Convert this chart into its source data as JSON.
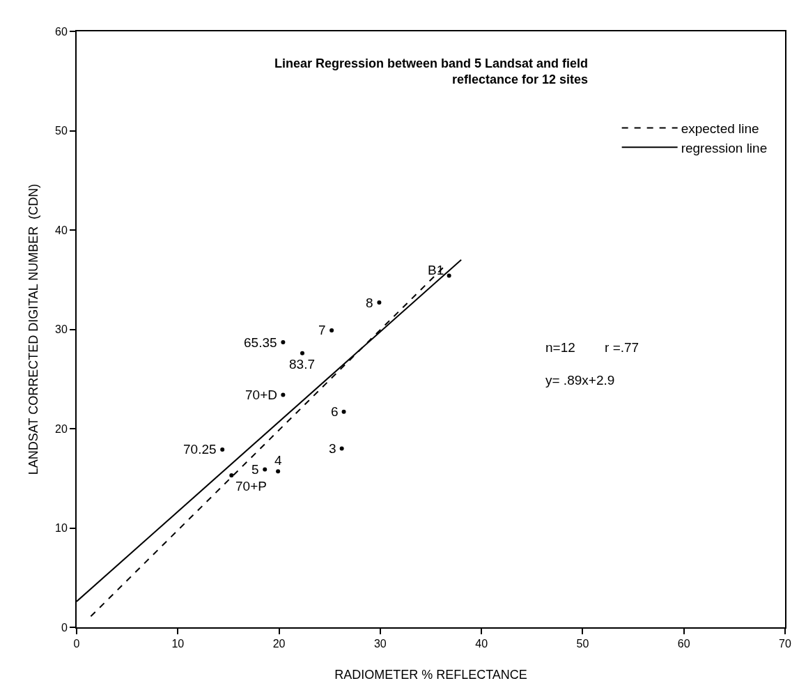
{
  "chart_data": {
    "type": "scatter",
    "title": "Linear Regression between band 5 Landsat and field\nreflectance for 12 sites",
    "xlabel": "RADIOMETER % REFLECTANCE",
    "ylabel": "LANDSAT CORRECTED DIGITAL NUMBER  (CDN)",
    "series": [
      {
        "color": "#000000",
        "marker": "circle",
        "x": [
          36.8,
          29.9,
          25.2,
          20.4,
          22.3,
          20.4,
          26.4,
          26.2,
          14.4,
          18.6,
          19.9,
          15.3
        ],
        "values": [
          35.4,
          32.7,
          29.9,
          28.7,
          27.6,
          23.4,
          21.7,
          18.0,
          17.9,
          15.9,
          15.7,
          15.3
        ]
      },
      {
        "type": "line",
        "name": "expected line",
        "color": "#000000",
        "line_style": "dashed",
        "marker": "none",
        "x": [
          1.4,
          36.3
        ],
        "values": [
          1.1,
          36.3
        ]
      },
      {
        "type": "line",
        "name": "regression line",
        "color": "#000000",
        "line_style": "solid",
        "marker": "none",
        "x": [
          0,
          38
        ],
        "values": [
          2.6,
          37.0
        ]
      }
    ],
    "annotations": [
      {
        "text": "B1",
        "x": 36.8,
        "y": 35.4
      },
      {
        "text": "8",
        "x": 29.9,
        "y": 32.7
      },
      {
        "text": "7",
        "x": 25.2,
        "y": 29.9
      },
      {
        "text": "65.35",
        "x": 20.4,
        "y": 28.7
      },
      {
        "text": "83.7",
        "x": 22.3,
        "y": 27.6
      },
      {
        "text": "70+D",
        "x": 20.4,
        "y": 23.4
      },
      {
        "text": "6",
        "x": 26.4,
        "y": 21.7
      },
      {
        "text": "3",
        "x": 26.2,
        "y": 18.0
      },
      {
        "text": "70.25",
        "x": 14.4,
        "y": 17.9
      },
      {
        "text": "5",
        "x": 18.6,
        "y": 15.9
      },
      {
        "text": "4",
        "x": 19.9,
        "y": 15.7
      },
      {
        "text": "70+P",
        "x": 15.3,
        "y": 15.3
      },
      "n=12        r =.77",
      "y= .89x+2.9"
    ],
    "xlim": [
      0,
      70
    ],
    "xticks": [
      0,
      10,
      20,
      30,
      40,
      50,
      60,
      70
    ],
    "ylim": [
      0,
      60
    ],
    "yticks": [
      0,
      10,
      20,
      30,
      40,
      50,
      60
    ],
    "grid": false,
    "legend": "top right"
  }
}
